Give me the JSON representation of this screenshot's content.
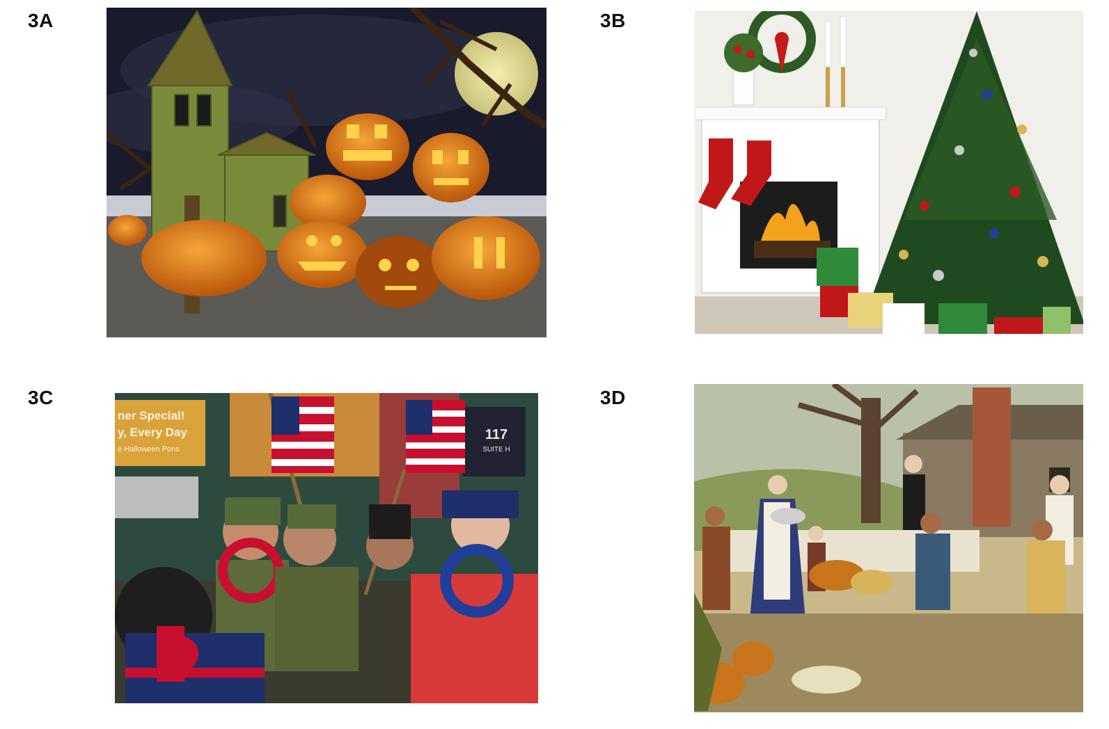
{
  "panels": [
    {
      "label": "3A",
      "subject": "halloween-pumpkins-scene"
    },
    {
      "label": "3B",
      "subject": "christmas-tree-fireplace"
    },
    {
      "label": "3C",
      "subject": "independence-day-parade"
    },
    {
      "label": "3D",
      "subject": "thanksgiving-feast-painting"
    }
  ],
  "photo_text": {
    "banner_line1": "ner Special!",
    "banner_line2": "y, Every Day",
    "banner_line3": "e Halloween Pons",
    "address_number": "117",
    "address_suite": "SUITE H"
  },
  "colors": {
    "night_sky": "#1a1a2e",
    "pumpkin": "#e07a12",
    "pumpkin_glow": "#ffd24a",
    "church": "#7a8a3a",
    "tree_green": "#1f4a1f",
    "stocking_red": "#c01818",
    "flag_red": "#c8102e",
    "flag_blue": "#1f2f6b",
    "painting_sky": "#c9b88a"
  }
}
